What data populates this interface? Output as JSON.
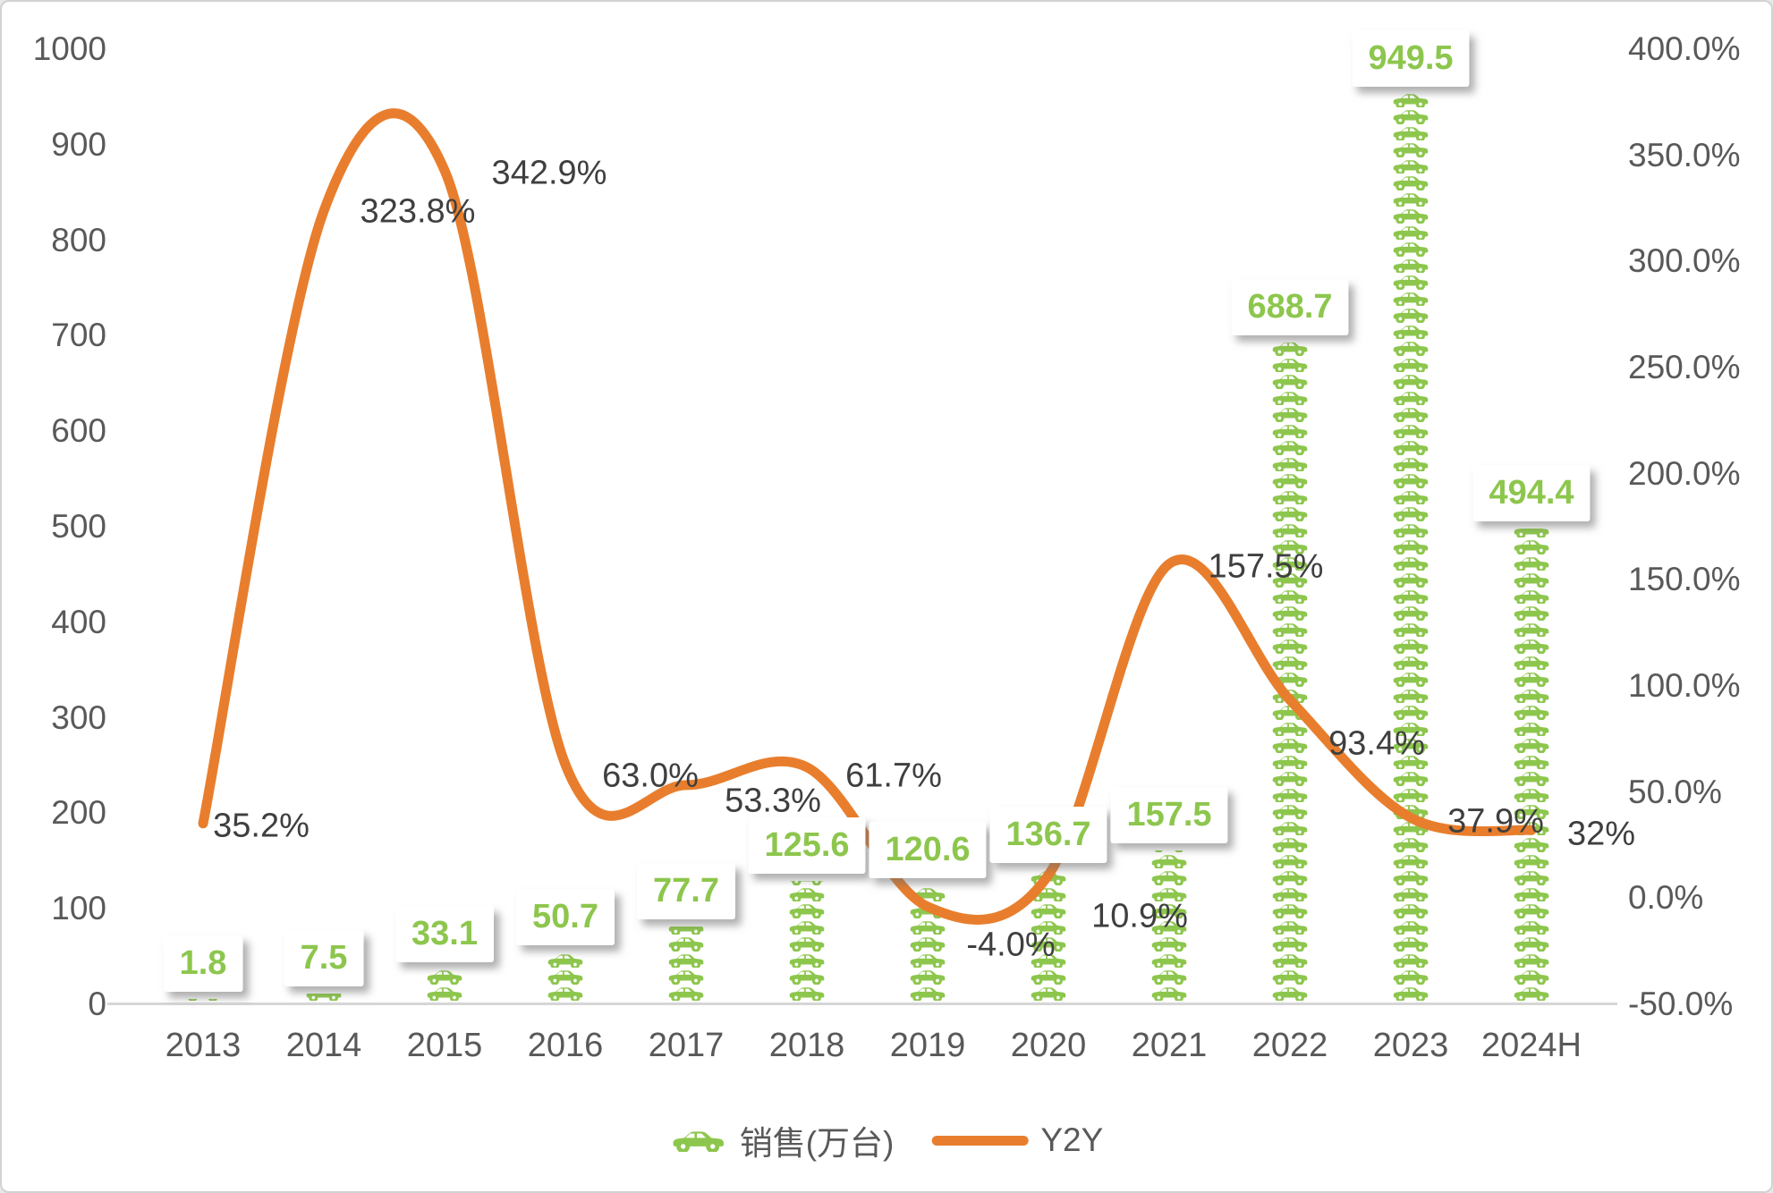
{
  "chart_data": {
    "type": "combo",
    "categories": [
      "2013",
      "2014",
      "2015",
      "2016",
      "2017",
      "2018",
      "2019",
      "2020",
      "2021",
      "2022",
      "2023",
      "2024H"
    ],
    "series": [
      {
        "name": "销售(万台)",
        "type": "pictogram-bar",
        "icon": "car-icon",
        "color": "#8dc64d",
        "values": [
          1.8,
          7.5,
          33.1,
          50.7,
          77.7,
          125.6,
          120.6,
          136.7,
          157.5,
          688.7,
          949.5,
          494.4
        ],
        "labels": [
          "1.8",
          "7.5",
          "33.1",
          "50.7",
          "77.7",
          "125.6",
          "120.6",
          "136.7",
          "157.5",
          "688.7",
          "949.5",
          "494.4"
        ]
      },
      {
        "name": "Y2Y",
        "type": "line",
        "color": "#e87e2d",
        "values_percent": [
          35.2,
          323.8,
          342.9,
          63.0,
          53.3,
          61.7,
          -4.0,
          10.9,
          157.5,
          93.4,
          37.9,
          32
        ],
        "labels": [
          "35.2%",
          "323.8%",
          "342.9%",
          "63.0%",
          "53.3%",
          "61.7%",
          "-4.0%",
          "10.9%",
          "157.5%",
          "93.4%",
          "37.9%",
          "32%"
        ]
      }
    ],
    "left_axis": {
      "min": 0,
      "max": 1000,
      "step": 100,
      "ticks": [
        "1000",
        "900",
        "800",
        "700",
        "600",
        "500",
        "400",
        "300",
        "200",
        "100",
        "0"
      ]
    },
    "right_axis": {
      "min": -50,
      "max": 400,
      "step": 50,
      "ticks": [
        "400.0%",
        "350.0%",
        "300.0%",
        "250.0%",
        "200.0%",
        "150.0%",
        "100.0%",
        "50.0%",
        "0.0%",
        "-50.0%"
      ]
    },
    "grid": false,
    "legend_position": "bottom"
  },
  "legend": {
    "bar_label": "销售(万台)",
    "line_label": "Y2Y"
  },
  "colors": {
    "bar_green": "#8dc64d",
    "line_orange": "#e87e2d",
    "axis_text": "#595959",
    "annotation_text": "#3f3f3f",
    "axis_line": "#d6d6d6"
  }
}
